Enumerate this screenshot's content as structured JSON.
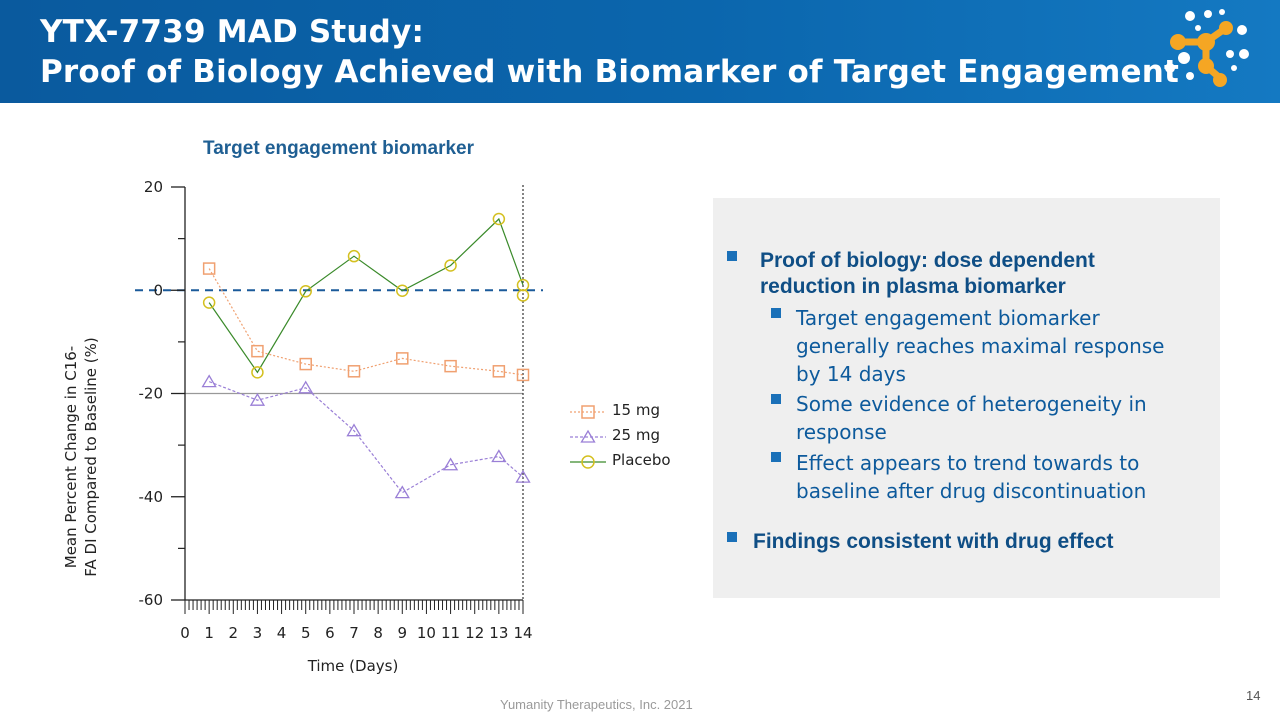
{
  "slide": {
    "title_line1": "YTX-7739 MAD Study:",
    "title_line2": "Proof of Biology Achieved with Biomarker of Target Engagement",
    "footer": "Yumanity Therapeutics, Inc. 2021",
    "page_number": "14",
    "brand_colors": {
      "header": "#0b66ad",
      "logo_orange": "#f5a623",
      "logo_light": "#ffffff"
    }
  },
  "bullets": {
    "main1_line1": "Proof of biology: dose dependent",
    "main1_line2": "reduction in plasma biomarker",
    "sub1_line1": "Target engagement biomarker",
    "sub1_line2": "generally reaches maximal response",
    "sub1_line3": "by 14 days",
    "sub2_line1": "Some evidence of heterogeneity in",
    "sub2_line2": "response",
    "sub3_line1": "Effect appears to trend towards to",
    "sub3_line2": "baseline after drug discontinuation",
    "main2": "Findings consistent with drug effect"
  },
  "chart_data": {
    "type": "line",
    "title": "Target engagement biomarker",
    "xlabel": "Time (Days)",
    "ylabel_line1": "Mean Percent Change in C16-",
    "ylabel_line2": "FA DI Compared to Baseline (%)",
    "xlim": [
      0,
      14
    ],
    "ylim": [
      -60,
      20
    ],
    "x_ticks": [
      0,
      1,
      2,
      3,
      4,
      5,
      6,
      7,
      8,
      9,
      10,
      11,
      12,
      13,
      14
    ],
    "y_ticks": [
      20,
      0,
      -20,
      -40,
      -60
    ],
    "y_tick_labels": [
      "20",
      "0",
      "-20",
      "-40",
      "-60"
    ],
    "reference_lines": [
      {
        "y": 0,
        "style": "dashed",
        "color": "#1a5a9a"
      },
      {
        "y": -20,
        "style": "solid",
        "color": "#999999"
      },
      {
        "x": 14,
        "style": "dotted",
        "color": "#333333"
      }
    ],
    "series": [
      {
        "name": "15 mg",
        "color": "#f0a070",
        "marker": "square",
        "line": "dotted",
        "x": [
          1,
          3,
          5,
          7,
          9,
          11,
          13,
          14
        ],
        "y": [
          4.2,
          -11.8,
          -14.3,
          -15.7,
          -13.2,
          -14.7,
          -15.7,
          -16.4
        ]
      },
      {
        "name": "25 mg",
        "color": "#9a7fd6",
        "marker": "triangle",
        "line": "dashed",
        "x": [
          1,
          3,
          5,
          7,
          9,
          11,
          13,
          14
        ],
        "y": [
          -17.7,
          -21.3,
          -18.9,
          -27.2,
          -39.2,
          -33.8,
          -32.2,
          -36.2
        ]
      },
      {
        "name": "Placebo",
        "color": "#3a8a2a",
        "marker": "circle",
        "line": "solid",
        "marker_color": "#d4c020",
        "x": [
          1,
          3,
          5,
          7,
          9,
          11,
          13,
          14
        ],
        "y": [
          -2.4,
          -15.9,
          -0.2,
          6.6,
          -0.1,
          4.8,
          13.8,
          1.0
        ]
      }
    ],
    "extra_points": [
      {
        "series": "Placebo",
        "x": 14,
        "y": -1.0
      }
    ]
  }
}
